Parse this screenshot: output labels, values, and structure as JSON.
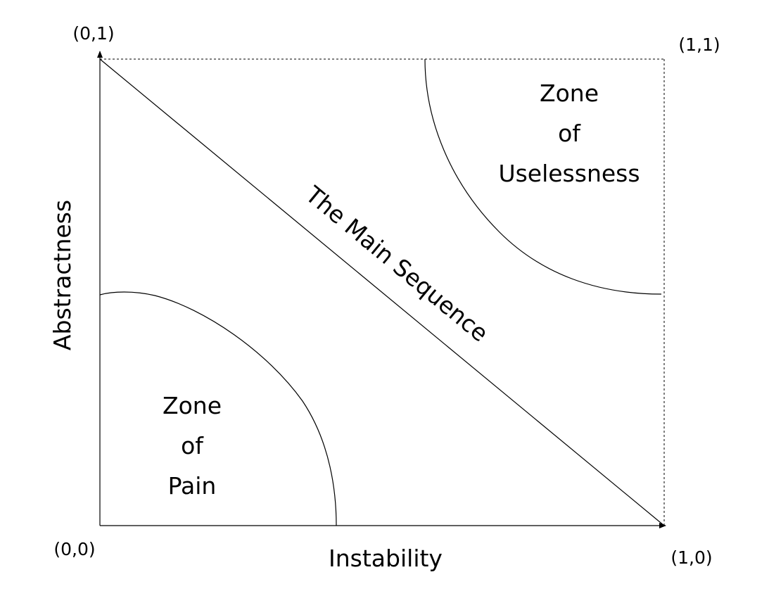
{
  "corners": {
    "origin": "(0,0)",
    "top_left": "(0,1)",
    "top_right": "(1,1)",
    "bottom_right": "(1,0)"
  },
  "axes": {
    "x_label": "Instability",
    "y_label": "Abstractness"
  },
  "zones": {
    "pain": [
      "Zone",
      "of",
      "Pain"
    ],
    "uselessness": [
      "Zone",
      "of",
      "Uselessness"
    ]
  },
  "main_sequence": "The Main Sequence",
  "colors": {
    "line": "#000000",
    "background": "#ffffff"
  }
}
